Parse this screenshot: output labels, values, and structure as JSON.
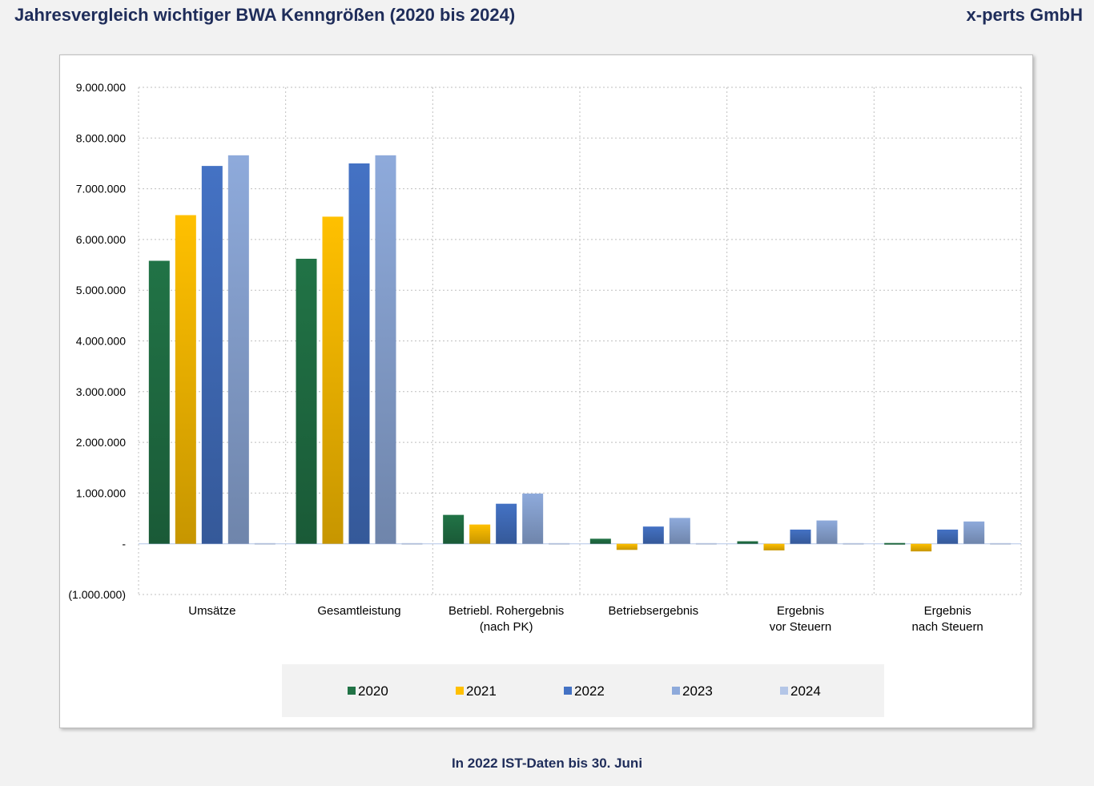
{
  "header": {
    "title": "Jahresvergleich wichtiger BWA Kenngrößen (2020 bis 2024)",
    "company": "x-perts GmbH"
  },
  "footnote": "In 2022 IST-Daten bis 30. Juni",
  "chart_data": {
    "type": "bar",
    "categories": [
      [
        "Umsätze"
      ],
      [
        "Gesamtleistung"
      ],
      [
        "Betriebl. Rohergebnis",
        "(nach PK)"
      ],
      [
        "Betriebsergebnis"
      ],
      [
        "Ergebnis",
        "vor Steuern"
      ],
      [
        "Ergebnis",
        "nach Steuern"
      ]
    ],
    "series": [
      {
        "name": "2020",
        "color": "#217346",
        "values": [
          5580000,
          5620000,
          570000,
          100000,
          50000,
          30000
        ]
      },
      {
        "name": "2021",
        "color": "#ffc000",
        "values": [
          6480000,
          6450000,
          380000,
          -120000,
          -130000,
          -150000
        ]
      },
      {
        "name": "2022",
        "color": "#4472c4",
        "values": [
          7450000,
          7500000,
          790000,
          340000,
          280000,
          280000
        ]
      },
      {
        "name": "2023",
        "color": "#8eaadb",
        "values": [
          7660000,
          7660000,
          990000,
          510000,
          460000,
          440000
        ]
      },
      {
        "name": "2024",
        "color": "#b4c6e7",
        "values": [
          0,
          0,
          0,
          0,
          0,
          0
        ]
      }
    ],
    "ylim": [
      -1000000,
      9000000
    ],
    "yticks": [
      {
        "value": 9000000,
        "label": "9.000.000"
      },
      {
        "value": 8000000,
        "label": "8.000.000"
      },
      {
        "value": 7000000,
        "label": "7.000.000"
      },
      {
        "value": 6000000,
        "label": "6.000.000"
      },
      {
        "value": 5000000,
        "label": "5.000.000"
      },
      {
        "value": 4000000,
        "label": "4.000.000"
      },
      {
        "value": 3000000,
        "label": "3.000.000"
      },
      {
        "value": 2000000,
        "label": "2.000.000"
      },
      {
        "value": 1000000,
        "label": "1.000.000"
      },
      {
        "value": 0,
        "label": "-"
      },
      {
        "value": -1000000,
        "label": "(1.000.000)"
      }
    ],
    "grid": true,
    "legend": "bottom"
  }
}
